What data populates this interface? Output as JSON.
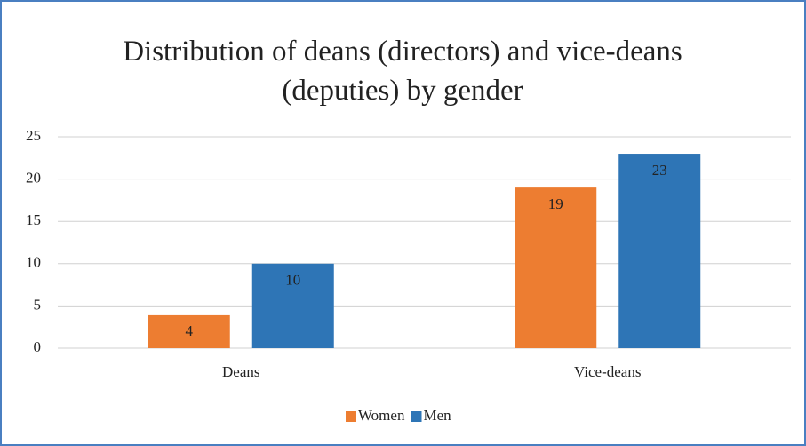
{
  "chart_data": {
    "type": "bar",
    "title": "Distribution of deans (directors) and vice-deans (deputies) by gender",
    "categories": [
      "Deans",
      "Vice-deans"
    ],
    "series": [
      {
        "name": "Women",
        "color": "#ed7d31",
        "values": [
          4,
          19
        ]
      },
      {
        "name": "Men",
        "color": "#2e75b6",
        "values": [
          10,
          23
        ]
      }
    ],
    "ylim": [
      0,
      25
    ],
    "yticks": [
      0,
      5,
      10,
      15,
      20,
      25
    ],
    "grid": true,
    "legend": "bottom"
  }
}
